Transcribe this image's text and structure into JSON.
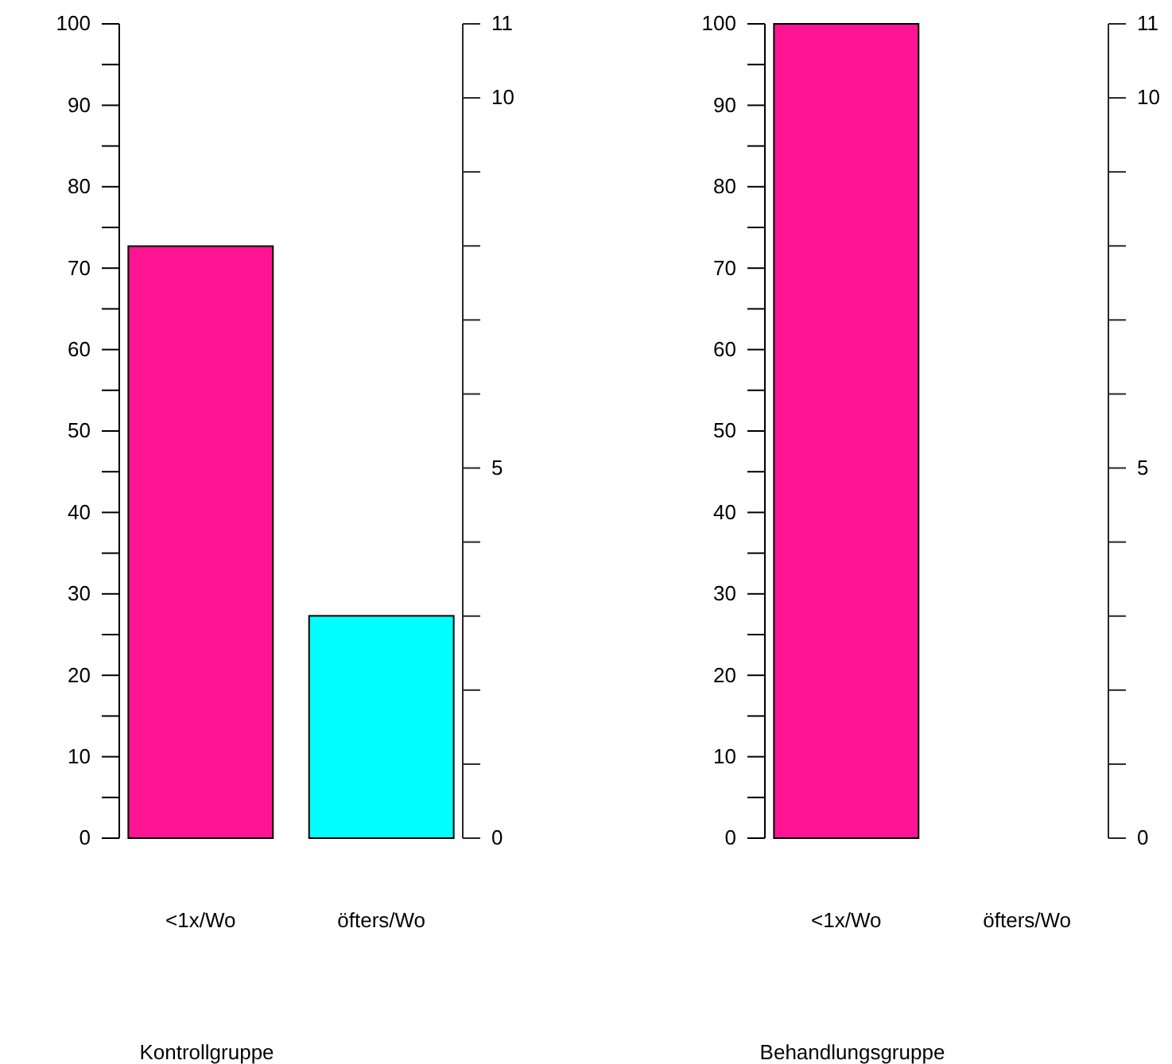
{
  "chart_data": [
    {
      "type": "bar",
      "xlabel": "Kontrollgruppe",
      "categories": [
        "<1x/Wo",
        "öfters/Wo"
      ],
      "values": [
        72.7,
        27.3
      ],
      "colors": [
        "#ff1493",
        "#00ffff"
      ],
      "ylim": [
        0,
        100
      ],
      "yticks": [
        0,
        {
          "value": 5,
          "label": null
        },
        10,
        {
          "value": 15,
          "label": null
        },
        20,
        {
          "value": 25,
          "label": null
        },
        30,
        {
          "value": 35,
          "label": null
        },
        40,
        {
          "value": 45,
          "label": null
        },
        50,
        {
          "value": 55,
          "label": null
        },
        60,
        {
          "value": 65,
          "label": null
        },
        70,
        {
          "value": 75,
          "label": null
        },
        80,
        {
          "value": 85,
          "label": null
        },
        90,
        {
          "value": 95,
          "label": null
        },
        100
      ],
      "y2lim": [
        0,
        11
      ],
      "y2ticks": [
        0,
        {
          "value": 1,
          "label": null
        },
        {
          "value": 2,
          "label": null
        },
        {
          "value": 3,
          "label": null
        },
        {
          "value": 4,
          "label": null
        },
        5,
        {
          "value": 6,
          "label": null
        },
        {
          "value": 7,
          "label": null
        },
        {
          "value": 8,
          "label": null
        },
        {
          "value": 9,
          "label": null
        },
        10,
        11
      ],
      "grid": false,
      "legend": false
    },
    {
      "type": "bar",
      "xlabel": "Behandlungsgruppe",
      "categories": [
        "<1x/Wo",
        "öfters/Wo"
      ],
      "values": [
        100,
        0
      ],
      "colors": [
        "#ff1493",
        "#00ffff"
      ],
      "ylim": [
        0,
        100
      ],
      "yticks": [
        0,
        {
          "value": 5,
          "label": null
        },
        10,
        {
          "value": 15,
          "label": null
        },
        20,
        {
          "value": 25,
          "label": null
        },
        30,
        {
          "value": 35,
          "label": null
        },
        40,
        {
          "value": 45,
          "label": null
        },
        50,
        {
          "value": 55,
          "label": null
        },
        60,
        {
          "value": 65,
          "label": null
        },
        70,
        {
          "value": 75,
          "label": null
        },
        80,
        {
          "value": 85,
          "label": null
        },
        90,
        {
          "value": 95,
          "label": null
        },
        100
      ],
      "y2lim": [
        0,
        11
      ],
      "y2ticks": [
        0,
        {
          "value": 1,
          "label": null
        },
        {
          "value": 2,
          "label": null
        },
        {
          "value": 3,
          "label": null
        },
        {
          "value": 4,
          "label": null
        },
        5,
        {
          "value": 6,
          "label": null
        },
        {
          "value": 7,
          "label": null
        },
        {
          "value": 8,
          "label": null
        },
        {
          "value": 9,
          "label": null
        },
        10,
        11
      ],
      "grid": false,
      "legend": false
    }
  ]
}
